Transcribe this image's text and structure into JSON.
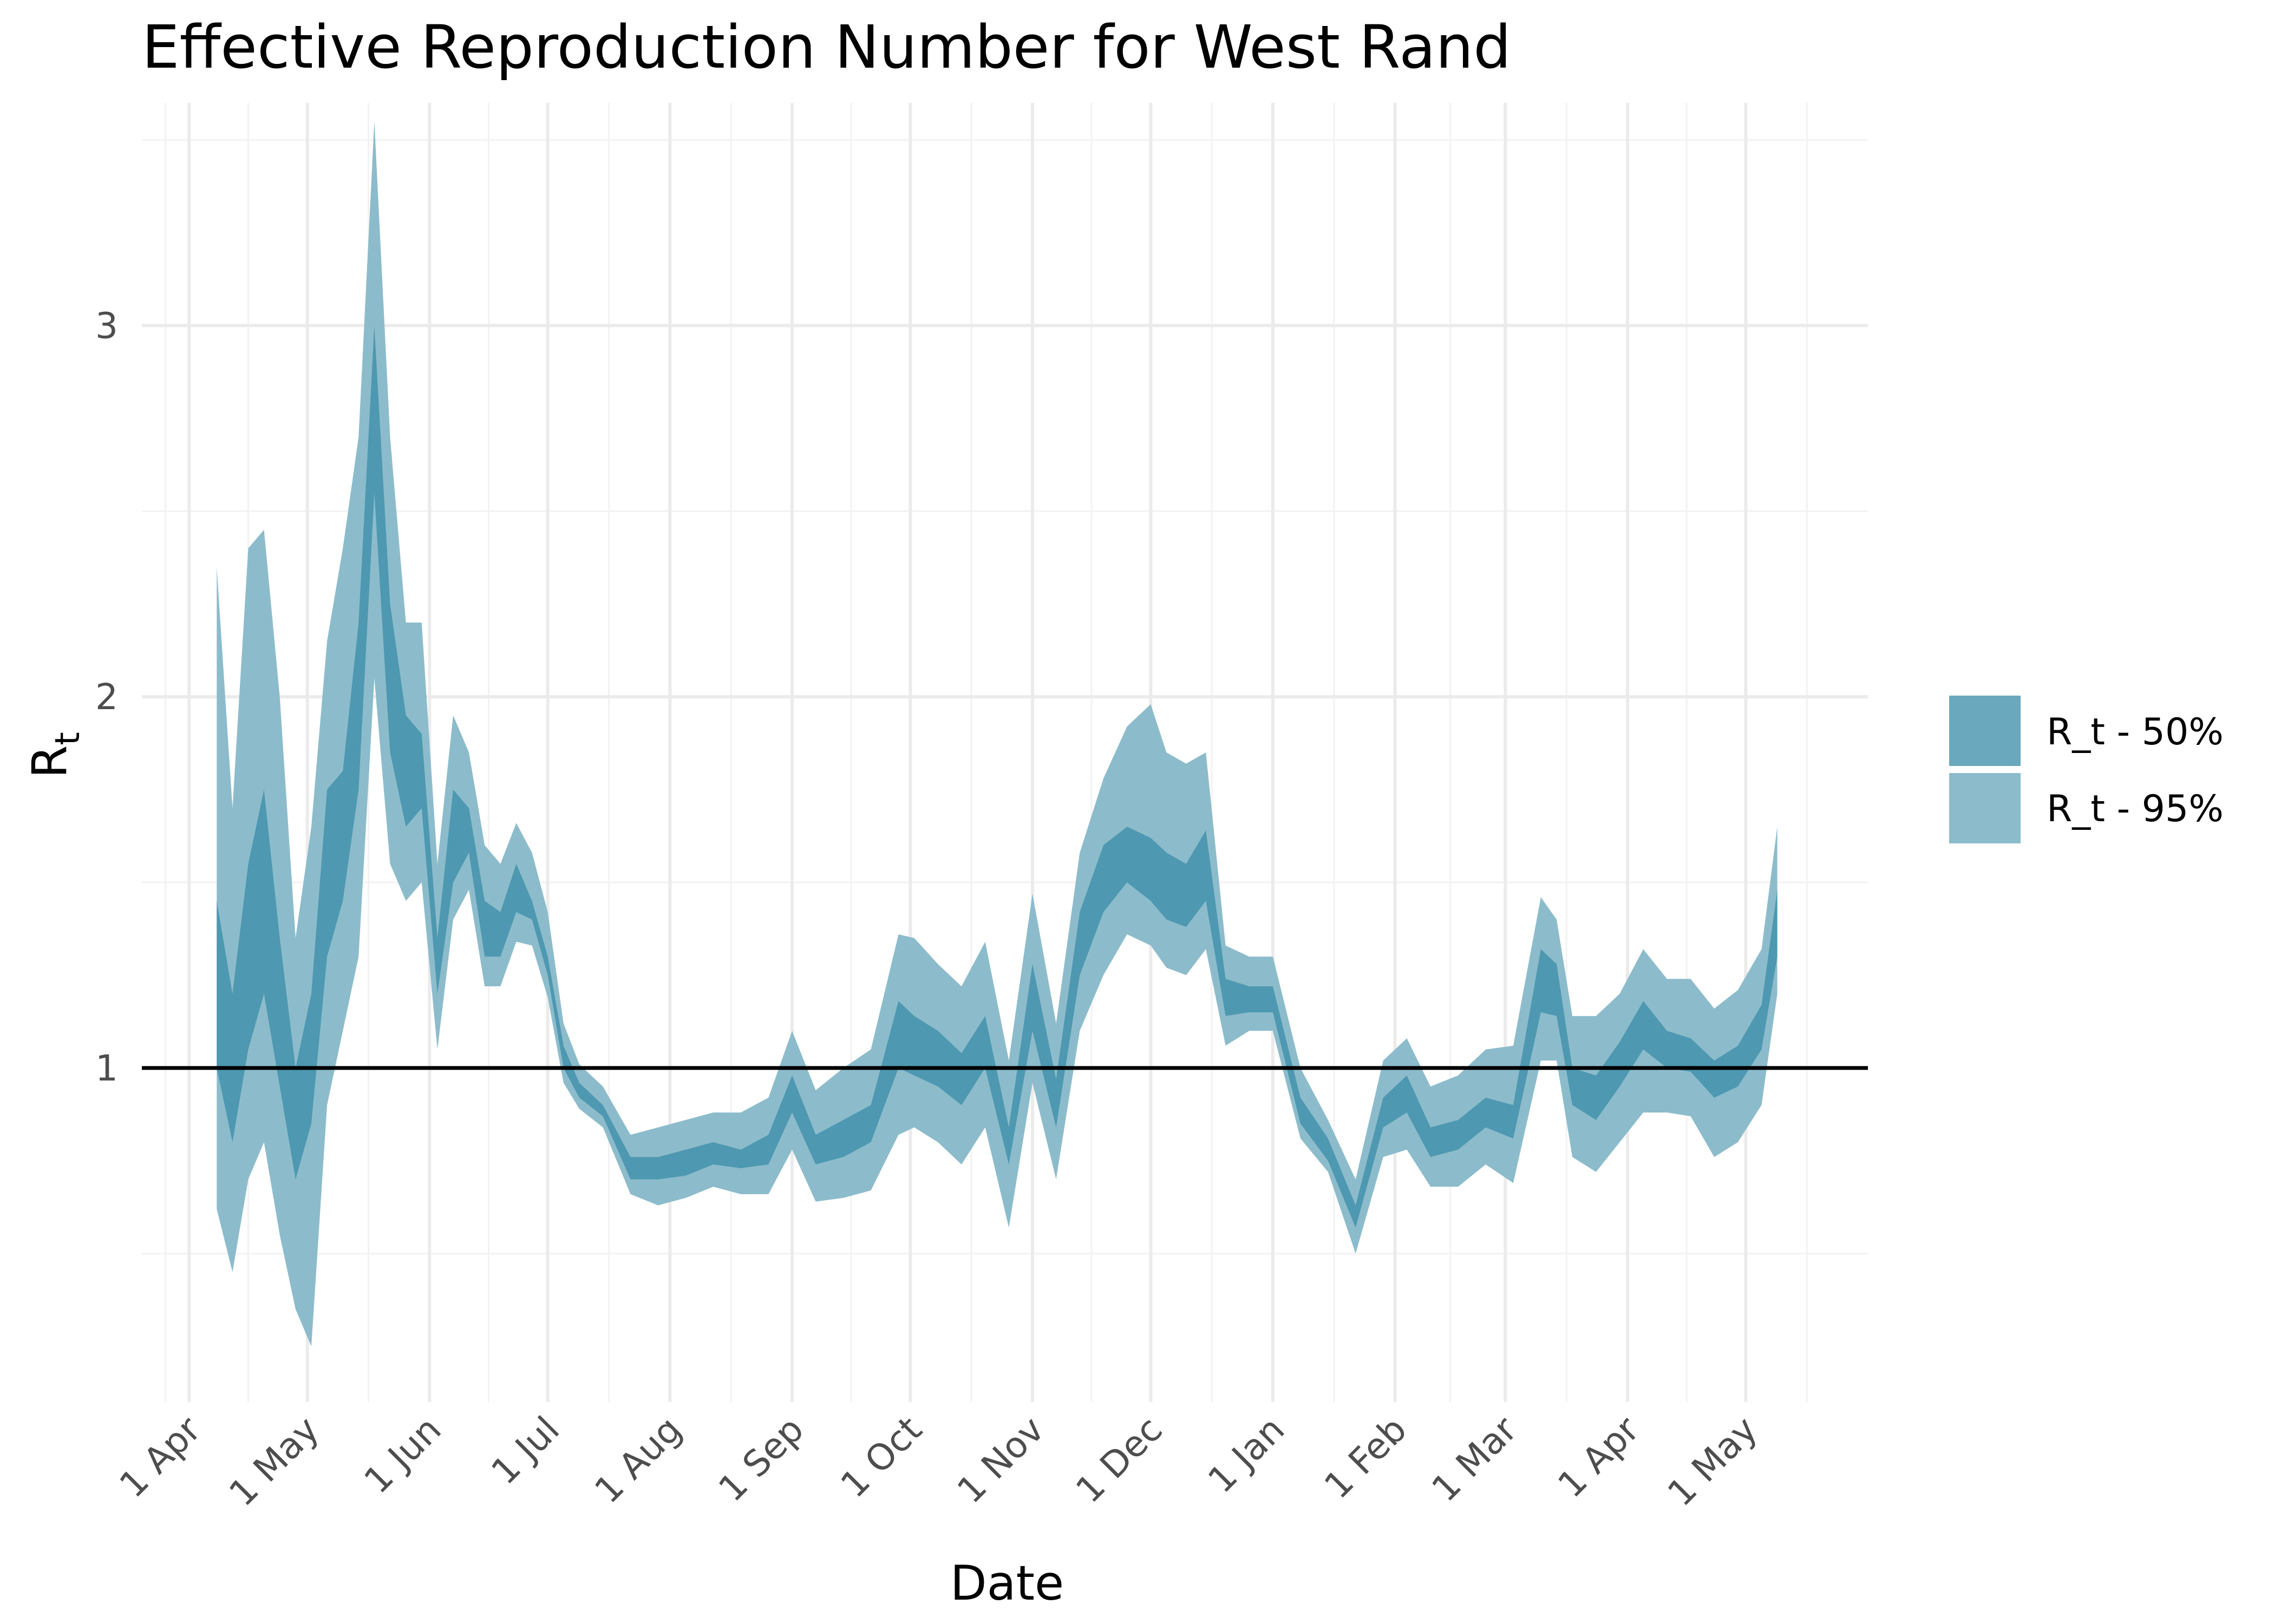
{
  "chart_data": {
    "type": "area",
    "title": "Effective Reproduction Number for West Rand",
    "xlabel": "Date",
    "ylabel": "R",
    "ylabel_subscript": "t",
    "x_ticks": [
      "1 Apr",
      "1 May",
      "1 Jun",
      "1 Jul",
      "1 Aug",
      "1 Sep",
      "1 Oct",
      "1 Nov",
      "1 Dec",
      "1 Jan",
      "1 Feb",
      "1 Mar",
      "1 Apr",
      "1 May"
    ],
    "y_ticks": [
      "1",
      "2",
      "3"
    ],
    "y_tick_values": [
      1,
      2,
      3
    ],
    "xlim": [
      "2020-03-20",
      "2021-06-01"
    ],
    "ylim": [
      0.1,
      3.6
    ],
    "grid": true,
    "reference_line": 1,
    "legend_position": "right",
    "colors": {
      "band_50": "#4e98b1",
      "band_95": "#8cbccb",
      "reference_line": "#000000",
      "grid": "#ebebeb"
    },
    "series": [
      {
        "name": "R_t - 50%",
        "x": [
          "2020-04-08",
          "2020-04-12",
          "2020-04-16",
          "2020-04-20",
          "2020-04-24",
          "2020-04-28",
          "2020-05-02",
          "2020-05-06",
          "2020-05-10",
          "2020-05-14",
          "2020-05-18",
          "2020-05-22",
          "2020-05-26",
          "2020-05-30",
          "2020-06-03",
          "2020-06-07",
          "2020-06-11",
          "2020-06-15",
          "2020-06-19",
          "2020-06-23",
          "2020-06-27",
          "2020-07-01",
          "2020-07-05",
          "2020-07-09",
          "2020-07-15",
          "2020-07-22",
          "2020-07-29",
          "2020-08-05",
          "2020-08-12",
          "2020-08-19",
          "2020-08-26",
          "2020-09-01",
          "2020-09-07",
          "2020-09-14",
          "2020-09-21",
          "2020-09-28",
          "2020-10-02",
          "2020-10-08",
          "2020-10-14",
          "2020-10-20",
          "2020-10-26",
          "2020-11-01",
          "2020-11-07",
          "2020-11-13",
          "2020-11-19",
          "2020-11-25",
          "2020-12-01",
          "2020-12-05",
          "2020-12-10",
          "2020-12-15",
          "2020-12-20",
          "2020-12-26",
          "2021-01-01",
          "2021-01-08",
          "2021-01-15",
          "2021-01-22",
          "2021-01-29",
          "2021-02-04",
          "2021-02-10",
          "2021-02-17",
          "2021-02-24",
          "2021-03-03",
          "2021-03-10",
          "2021-03-14",
          "2021-03-18",
          "2021-03-24",
          "2021-03-30",
          "2021-04-05",
          "2021-04-11",
          "2021-04-17",
          "2021-04-23",
          "2021-04-29",
          "2021-05-05",
          "2021-05-09"
        ],
        "lower": [
          1.0,
          0.8,
          1.05,
          1.2,
          0.95,
          0.7,
          0.85,
          1.3,
          1.45,
          1.75,
          2.55,
          1.85,
          1.65,
          1.7,
          1.2,
          1.5,
          1.58,
          1.3,
          1.3,
          1.42,
          1.4,
          1.25,
          1.0,
          0.92,
          0.87,
          0.7,
          0.7,
          0.71,
          0.74,
          0.73,
          0.74,
          0.88,
          0.74,
          0.76,
          0.8,
          1.0,
          0.98,
          0.95,
          0.9,
          1.0,
          0.74,
          1.1,
          0.84,
          1.25,
          1.42,
          1.5,
          1.45,
          1.4,
          1.38,
          1.45,
          1.14,
          1.15,
          1.15,
          0.85,
          0.75,
          0.57,
          0.84,
          0.88,
          0.76,
          0.78,
          0.84,
          0.81,
          1.15,
          1.14,
          0.9,
          0.86,
          0.95,
          1.05,
          1.0,
          0.99,
          0.92,
          0.95,
          1.05,
          1.3
        ],
        "upper": [
          1.45,
          1.2,
          1.55,
          1.75,
          1.35,
          1.0,
          1.2,
          1.75,
          1.8,
          2.2,
          3.0,
          2.25,
          1.95,
          1.9,
          1.35,
          1.75,
          1.7,
          1.45,
          1.42,
          1.55,
          1.45,
          1.3,
          1.06,
          0.96,
          0.9,
          0.76,
          0.76,
          0.78,
          0.8,
          0.78,
          0.82,
          0.98,
          0.82,
          0.86,
          0.9,
          1.18,
          1.14,
          1.1,
          1.04,
          1.14,
          0.84,
          1.28,
          0.97,
          1.42,
          1.6,
          1.65,
          1.62,
          1.58,
          1.55,
          1.64,
          1.24,
          1.22,
          1.22,
          0.92,
          0.81,
          0.63,
          0.92,
          0.98,
          0.84,
          0.86,
          0.92,
          0.9,
          1.32,
          1.28,
          1.0,
          0.98,
          1.07,
          1.18,
          1.1,
          1.08,
          1.02,
          1.06,
          1.17,
          1.48
        ]
      },
      {
        "name": "R_t - 95%",
        "x": [
          "2020-04-08",
          "2020-04-12",
          "2020-04-16",
          "2020-04-20",
          "2020-04-24",
          "2020-04-28",
          "2020-05-02",
          "2020-05-06",
          "2020-05-10",
          "2020-05-14",
          "2020-05-18",
          "2020-05-22",
          "2020-05-26",
          "2020-05-30",
          "2020-06-03",
          "2020-06-07",
          "2020-06-11",
          "2020-06-15",
          "2020-06-19",
          "2020-06-23",
          "2020-06-27",
          "2020-07-01",
          "2020-07-05",
          "2020-07-09",
          "2020-07-15",
          "2020-07-22",
          "2020-07-29",
          "2020-08-05",
          "2020-08-12",
          "2020-08-19",
          "2020-08-26",
          "2020-09-01",
          "2020-09-07",
          "2020-09-14",
          "2020-09-21",
          "2020-09-28",
          "2020-10-02",
          "2020-10-08",
          "2020-10-14",
          "2020-10-20",
          "2020-10-26",
          "2020-11-01",
          "2020-11-07",
          "2020-11-13",
          "2020-11-19",
          "2020-11-25",
          "2020-12-01",
          "2020-12-05",
          "2020-12-10",
          "2020-12-15",
          "2020-12-20",
          "2020-12-26",
          "2021-01-01",
          "2021-01-08",
          "2021-01-15",
          "2021-01-22",
          "2021-01-29",
          "2021-02-04",
          "2021-02-10",
          "2021-02-17",
          "2021-02-24",
          "2021-03-03",
          "2021-03-10",
          "2021-03-14",
          "2021-03-18",
          "2021-03-24",
          "2021-03-30",
          "2021-04-05",
          "2021-04-11",
          "2021-04-17",
          "2021-04-23",
          "2021-04-29",
          "2021-05-05",
          "2021-05-09"
        ],
        "lower": [
          0.62,
          0.45,
          0.7,
          0.8,
          0.55,
          0.35,
          0.25,
          0.9,
          1.1,
          1.3,
          2.05,
          1.55,
          1.45,
          1.5,
          1.05,
          1.4,
          1.48,
          1.22,
          1.22,
          1.34,
          1.33,
          1.19,
          0.96,
          0.89,
          0.84,
          0.66,
          0.63,
          0.65,
          0.68,
          0.66,
          0.66,
          0.78,
          0.64,
          0.65,
          0.67,
          0.82,
          0.84,
          0.8,
          0.74,
          0.84,
          0.57,
          0.96,
          0.7,
          1.1,
          1.25,
          1.36,
          1.33,
          1.27,
          1.25,
          1.32,
          1.06,
          1.1,
          1.1,
          0.81,
          0.72,
          0.5,
          0.76,
          0.78,
          0.68,
          0.68,
          0.74,
          0.69,
          1.02,
          1.02,
          0.76,
          0.72,
          0.8,
          0.88,
          0.88,
          0.87,
          0.76,
          0.8,
          0.9,
          1.2
        ],
        "upper": [
          2.35,
          1.7,
          2.4,
          2.45,
          2.0,
          1.35,
          1.65,
          2.15,
          2.4,
          2.7,
          3.55,
          2.7,
          2.2,
          2.2,
          1.55,
          1.95,
          1.85,
          1.6,
          1.55,
          1.66,
          1.58,
          1.42,
          1.12,
          1.01,
          0.95,
          0.82,
          0.84,
          0.86,
          0.88,
          0.88,
          0.92,
          1.1,
          0.94,
          1.0,
          1.05,
          1.36,
          1.35,
          1.28,
          1.22,
          1.34,
          1.02,
          1.47,
          1.12,
          1.58,
          1.78,
          1.92,
          1.98,
          1.85,
          1.82,
          1.85,
          1.33,
          1.3,
          1.3,
          1.0,
          0.86,
          0.7,
          1.02,
          1.08,
          0.95,
          0.98,
          1.05,
          1.06,
          1.46,
          1.4,
          1.14,
          1.14,
          1.2,
          1.32,
          1.24,
          1.24,
          1.16,
          1.21,
          1.32,
          1.65
        ]
      }
    ]
  }
}
